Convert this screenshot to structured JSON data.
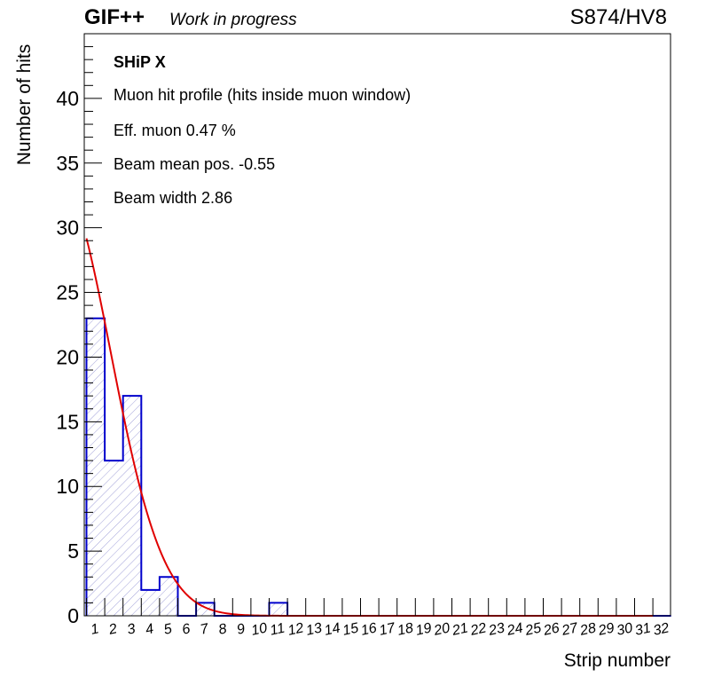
{
  "header": {
    "title": "GIF++",
    "subtitle": "Work in progress",
    "right_label": "S874/HV8"
  },
  "annotations": {
    "title": "SHiP X",
    "lines": [
      "Muon hit profile (hits inside muon window)",
      "Eff. muon 0.47 %",
      "Beam mean pos. -0.55",
      "Beam width 2.86"
    ]
  },
  "colors": {
    "histogram_line": "#0000cc",
    "hatch": "#8a8ad0",
    "fit_line": "#e00000",
    "axes": "#000000"
  },
  "chart_data": {
    "type": "bar",
    "title": "",
    "xlabel": "Strip number",
    "ylabel": "Number of hits",
    "categories": [
      "1",
      "2",
      "3",
      "4",
      "5",
      "6",
      "7",
      "8",
      "9",
      "10",
      "11",
      "12",
      "13",
      "14",
      "15",
      "16",
      "17",
      "18",
      "19",
      "20",
      "21",
      "22",
      "23",
      "24",
      "25",
      "26",
      "27",
      "28",
      "29",
      "30",
      "31",
      "32"
    ],
    "values": [
      23,
      12,
      17,
      2,
      3,
      0,
      1,
      0,
      0,
      0,
      1,
      0,
      0,
      0,
      0,
      0,
      0,
      0,
      0,
      0,
      0,
      0,
      0,
      0,
      0,
      0,
      0,
      0,
      0,
      0,
      0,
      0
    ],
    "ylim": [
      0,
      45
    ],
    "y_ticks": [
      0,
      5,
      10,
      15,
      20,
      25,
      30,
      35,
      40
    ],
    "grid": false,
    "fit": {
      "type": "gaussian",
      "mean": -0.55,
      "sigma": 2.86,
      "amplitude": 33.8,
      "x_start": 1,
      "x_end": 32
    }
  }
}
